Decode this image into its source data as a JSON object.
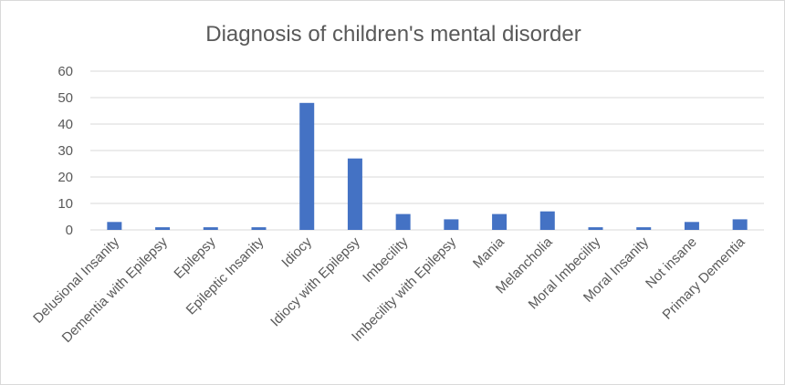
{
  "chart_data": {
    "type": "bar",
    "title": "Diagnosis of children's mental disorder",
    "xlabel": "",
    "ylabel": "",
    "categories": [
      "Delusional Insanity",
      "Dementia with Epilepsy",
      "Epilepsy",
      "Epileptic Insanity",
      "Idiocy",
      "Idiocy with Epilepsy",
      "Imbecility",
      "Imbecility with Epilepsy",
      "Mania",
      "Melancholia",
      "Moral Imbecility",
      "Moral Insanity",
      "Not insane",
      "Primary Dementia"
    ],
    "values": [
      3,
      1,
      1,
      1,
      48,
      27,
      6,
      4,
      6,
      7,
      1,
      1,
      3,
      4
    ],
    "ylim": [
      0,
      60
    ],
    "yticks": [
      "0",
      "10",
      "20",
      "30",
      "40",
      "50",
      "60"
    ],
    "grid": true,
    "legend": "none",
    "bar_color": "#4472c4"
  }
}
